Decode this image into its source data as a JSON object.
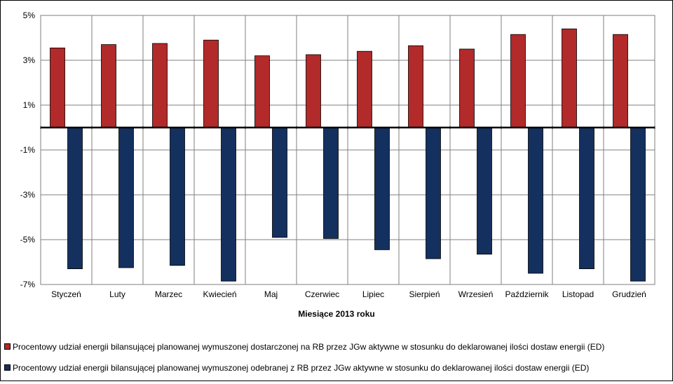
{
  "colors": {
    "series1": "#b22a2a",
    "series2": "#14305e",
    "grid": "#7f7f7f",
    "zeroline": "#000000"
  },
  "chart_data": {
    "type": "bar",
    "categories": [
      "Styczeń",
      "Luty",
      "Marzec",
      "Kwiecień",
      "Maj",
      "Czerwiec",
      "Lipiec",
      "Sierpień",
      "Wrzesień",
      "Październik",
      "Listopad",
      "Grudzień"
    ],
    "series": [
      {
        "name": "Procentowy udział energii bilansującej planowanej wymuszonej dostarczonej na RB przez JGw aktywne w stosunku do deklarowanej ilości dostaw energii (ED)",
        "values": [
          3.55,
          3.7,
          3.75,
          3.9,
          3.2,
          3.25,
          3.4,
          3.65,
          3.5,
          4.15,
          4.4,
          4.15
        ]
      },
      {
        "name": "Procentowy udział energii bilansującej planowanej wymuszonej odebranej z RB przez JGw aktywne w stosunku do deklarowanej ilości dostaw energii (ED)",
        "values": [
          -6.3,
          -6.25,
          -6.15,
          -6.85,
          -4.9,
          -4.95,
          -5.45,
          -5.85,
          -5.65,
          -6.5,
          -6.3,
          -6.85
        ]
      }
    ],
    "yticks": [
      "5%",
      "3%",
      "1%",
      "-1%",
      "-3%",
      "-5%",
      "-7%"
    ],
    "ylim": [
      -7,
      5
    ],
    "xlabel": "Miesiące 2013  roku",
    "ylabel": "",
    "legend_position": "bottom",
    "grid": true
  }
}
